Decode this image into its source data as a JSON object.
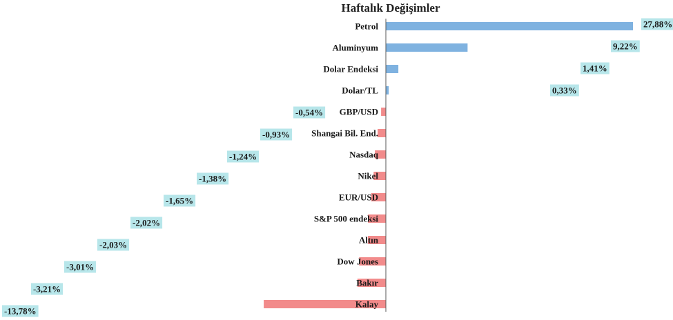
{
  "chart_data": {
    "type": "bar",
    "orientation": "horizontal",
    "title": "Haftalık Değişimler",
    "xlabel": "",
    "ylabel": "",
    "grid": false,
    "legend": "none",
    "categories": [
      "Petrol",
      "Aluminyum",
      "Dolar Endeksi",
      "Dolar/TL",
      "GBP/USD",
      "Shangai Bil. End.",
      "Nasdaq",
      "Nikel",
      "EUR/USD",
      "S&P 500 endeksi",
      "Altın",
      "Dow Jones",
      "Bakır",
      "Kalay"
    ],
    "values": [
      27.88,
      9.22,
      1.41,
      0.33,
      -0.54,
      -0.93,
      -1.24,
      -1.38,
      -1.65,
      -2.02,
      -2.03,
      -3.01,
      -3.21,
      -13.78
    ],
    "data_labels": [
      "27,88%",
      "9,22%",
      "1,41%",
      "0,33%",
      "-0,54%",
      "-0,93%",
      "-1,24%",
      "-1,38%",
      "-1,65%",
      "-2,02%",
      "-2,03%",
      "-3,01%",
      "-3,21%",
      "-13,78%"
    ],
    "xlim": [
      -13.78,
      27.88
    ],
    "colors": {
      "positive": "#7fb2e0",
      "negative": "#f28b8b",
      "label_bg": "#b7e6ea",
      "axis": "#555555"
    }
  }
}
